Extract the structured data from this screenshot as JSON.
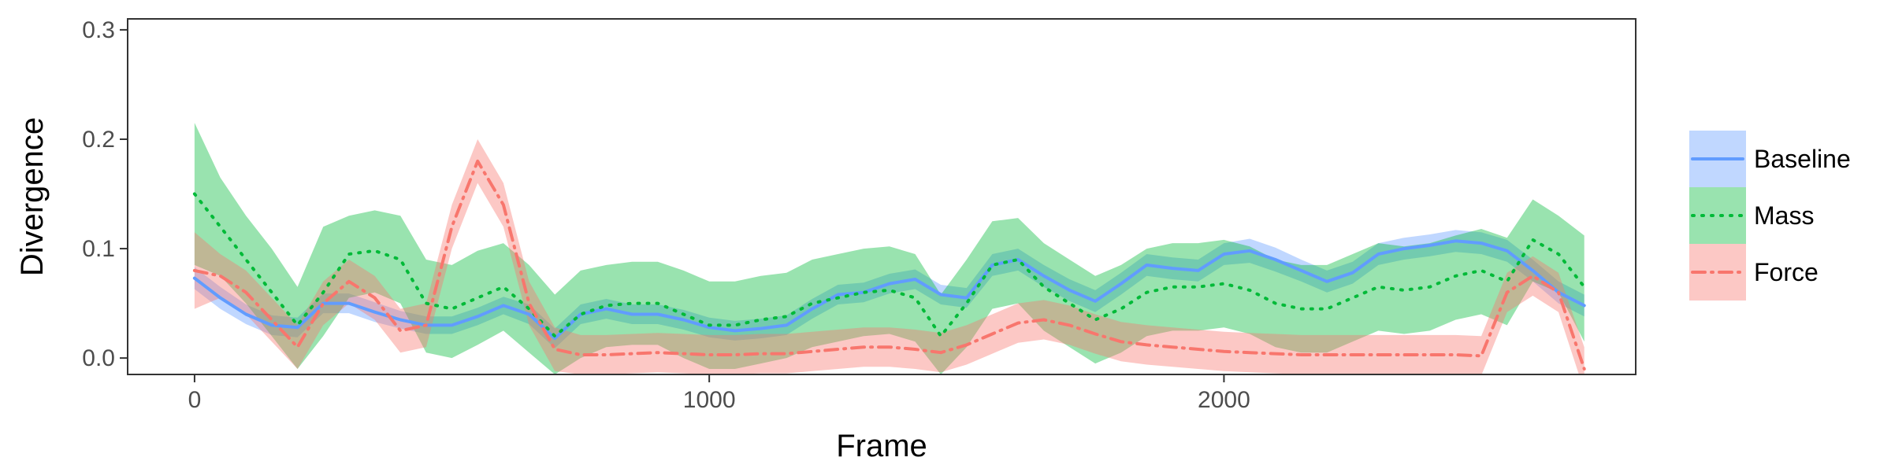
{
  "chart_data": {
    "type": "line",
    "title": "",
    "xlabel": "Frame",
    "ylabel": "Divergence",
    "xlim": [
      -130,
      2800
    ],
    "ylim": [
      -0.015,
      0.31
    ],
    "x_ticks": [
      0,
      1000,
      2000
    ],
    "x_tick_labels": [
      "0",
      "1000",
      "2000"
    ],
    "y_ticks": [
      0.0,
      0.1,
      0.2,
      0.3
    ],
    "y_tick_labels": [
      "0.0",
      "0.1",
      "0.2",
      "0.3"
    ],
    "grid": false,
    "legend_position": "right",
    "series": [
      {
        "name": "Baseline",
        "color": "#619CFF",
        "line_style": "solid",
        "x": [
          0,
          50,
          100,
          150,
          200,
          250,
          300,
          350,
          400,
          450,
          500,
          550,
          600,
          650,
          700,
          750,
          800,
          850,
          900,
          950,
          1000,
          1050,
          1100,
          1150,
          1200,
          1250,
          1300,
          1350,
          1400,
          1450,
          1500,
          1550,
          1600,
          1650,
          1700,
          1750,
          1800,
          1850,
          1900,
          1950,
          2000,
          2050,
          2100,
          2150,
          2200,
          2250,
          2300,
          2350,
          2400,
          2450,
          2500,
          2550,
          2600,
          2650,
          2700
        ],
        "y": [
          0.073,
          0.055,
          0.04,
          0.03,
          0.028,
          0.05,
          0.05,
          0.042,
          0.035,
          0.03,
          0.03,
          0.038,
          0.048,
          0.04,
          0.018,
          0.04,
          0.045,
          0.04,
          0.04,
          0.035,
          0.028,
          0.025,
          0.027,
          0.03,
          0.045,
          0.058,
          0.06,
          0.068,
          0.072,
          0.058,
          0.055,
          0.085,
          0.09,
          0.075,
          0.062,
          0.052,
          0.068,
          0.085,
          0.082,
          0.08,
          0.095,
          0.098,
          0.09,
          0.08,
          0.07,
          0.078,
          0.095,
          0.1,
          0.103,
          0.107,
          0.105,
          0.098,
          0.08,
          0.06,
          0.048
        ],
        "lower": [
          0.063,
          0.045,
          0.031,
          0.021,
          0.019,
          0.041,
          0.041,
          0.033,
          0.027,
          0.022,
          0.022,
          0.03,
          0.04,
          0.031,
          0.009,
          0.031,
          0.036,
          0.031,
          0.031,
          0.026,
          0.019,
          0.016,
          0.018,
          0.021,
          0.036,
          0.049,
          0.051,
          0.059,
          0.063,
          0.049,
          0.046,
          0.075,
          0.08,
          0.065,
          0.052,
          0.042,
          0.058,
          0.075,
          0.072,
          0.07,
          0.085,
          0.087,
          0.079,
          0.07,
          0.06,
          0.068,
          0.085,
          0.09,
          0.093,
          0.097,
          0.095,
          0.088,
          0.07,
          0.05,
          0.038
        ],
        "upper": [
          0.083,
          0.065,
          0.049,
          0.039,
          0.037,
          0.059,
          0.059,
          0.051,
          0.043,
          0.038,
          0.038,
          0.046,
          0.056,
          0.049,
          0.027,
          0.049,
          0.054,
          0.049,
          0.049,
          0.044,
          0.037,
          0.034,
          0.036,
          0.039,
          0.054,
          0.067,
          0.069,
          0.077,
          0.081,
          0.067,
          0.064,
          0.095,
          0.1,
          0.085,
          0.072,
          0.062,
          0.078,
          0.095,
          0.092,
          0.09,
          0.105,
          0.109,
          0.101,
          0.09,
          0.08,
          0.088,
          0.105,
          0.11,
          0.113,
          0.117,
          0.115,
          0.108,
          0.09,
          0.07,
          0.058
        ]
      },
      {
        "name": "Mass",
        "color": "#00BA38",
        "line_style": "dotted",
        "x": [
          0,
          50,
          100,
          150,
          200,
          250,
          300,
          350,
          400,
          450,
          500,
          550,
          600,
          650,
          700,
          750,
          800,
          850,
          900,
          950,
          1000,
          1050,
          1100,
          1150,
          1200,
          1250,
          1300,
          1350,
          1400,
          1450,
          1500,
          1550,
          1600,
          1650,
          1700,
          1750,
          1800,
          1850,
          1900,
          1950,
          2000,
          2050,
          2100,
          2150,
          2200,
          2250,
          2300,
          2350,
          2400,
          2450,
          2500,
          2550,
          2600,
          2650,
          2700
        ],
        "y": [
          0.15,
          0.12,
          0.09,
          0.06,
          0.03,
          0.06,
          0.095,
          0.098,
          0.09,
          0.05,
          0.045,
          0.055,
          0.065,
          0.045,
          0.02,
          0.04,
          0.048,
          0.05,
          0.05,
          0.04,
          0.03,
          0.03,
          0.035,
          0.038,
          0.05,
          0.055,
          0.06,
          0.062,
          0.055,
          0.02,
          0.05,
          0.085,
          0.09,
          0.065,
          0.05,
          0.035,
          0.045,
          0.06,
          0.065,
          0.065,
          0.068,
          0.062,
          0.05,
          0.045,
          0.045,
          0.055,
          0.065,
          0.062,
          0.065,
          0.075,
          0.08,
          0.07,
          0.108,
          0.095,
          0.065
        ],
        "lower": [
          0.085,
          0.075,
          0.05,
          0.02,
          -0.01,
          0.02,
          0.055,
          0.06,
          0.05,
          0.005,
          0.0,
          0.012,
          0.025,
          0.005,
          -0.015,
          0.0,
          0.01,
          0.012,
          0.012,
          0.0,
          -0.01,
          -0.01,
          -0.005,
          0.0,
          0.01,
          0.015,
          0.02,
          0.022,
          0.015,
          -0.015,
          0.01,
          0.045,
          0.05,
          0.025,
          0.01,
          -0.005,
          0.005,
          0.02,
          0.025,
          0.025,
          0.028,
          0.022,
          0.01,
          0.005,
          0.005,
          0.015,
          0.025,
          0.022,
          0.025,
          0.035,
          0.04,
          0.03,
          0.07,
          0.06,
          0.015
        ],
        "upper": [
          0.215,
          0.165,
          0.13,
          0.1,
          0.065,
          0.12,
          0.13,
          0.135,
          0.13,
          0.09,
          0.085,
          0.098,
          0.105,
          0.085,
          0.058,
          0.08,
          0.085,
          0.088,
          0.088,
          0.08,
          0.07,
          0.07,
          0.075,
          0.078,
          0.09,
          0.095,
          0.1,
          0.102,
          0.095,
          0.058,
          0.09,
          0.125,
          0.128,
          0.105,
          0.09,
          0.075,
          0.085,
          0.1,
          0.105,
          0.105,
          0.108,
          0.102,
          0.09,
          0.085,
          0.085,
          0.095,
          0.105,
          0.102,
          0.105,
          0.112,
          0.118,
          0.11,
          0.145,
          0.13,
          0.112
        ]
      },
      {
        "name": "Force",
        "color": "#F8766D",
        "line_style": "dashdot",
        "x": [
          0,
          50,
          100,
          150,
          200,
          250,
          300,
          350,
          400,
          450,
          500,
          550,
          600,
          650,
          700,
          750,
          800,
          850,
          900,
          950,
          1000,
          1050,
          1100,
          1150,
          1200,
          1250,
          1300,
          1350,
          1400,
          1450,
          1500,
          1550,
          1600,
          1650,
          1700,
          1750,
          1800,
          1850,
          1900,
          1950,
          2000,
          2050,
          2100,
          2150,
          2200,
          2250,
          2300,
          2350,
          2400,
          2450,
          2500,
          2550,
          2600,
          2650,
          2700
        ],
        "y": [
          0.08,
          0.075,
          0.06,
          0.035,
          0.01,
          0.05,
          0.07,
          0.055,
          0.025,
          0.03,
          0.12,
          0.18,
          0.14,
          0.05,
          0.008,
          0.003,
          0.003,
          0.004,
          0.005,
          0.004,
          0.003,
          0.003,
          0.004,
          0.004,
          0.006,
          0.008,
          0.01,
          0.01,
          0.008,
          0.005,
          0.012,
          0.022,
          0.032,
          0.035,
          0.03,
          0.022,
          0.015,
          0.012,
          0.01,
          0.008,
          0.006,
          0.005,
          0.004,
          0.003,
          0.003,
          0.003,
          0.003,
          0.003,
          0.003,
          0.003,
          0.002,
          0.06,
          0.075,
          0.06,
          -0.01
        ],
        "lower": [
          0.045,
          0.055,
          0.04,
          0.015,
          -0.01,
          0.03,
          0.05,
          0.035,
          0.005,
          0.01,
          0.1,
          0.16,
          0.12,
          0.03,
          -0.012,
          -0.015,
          -0.015,
          -0.014,
          -0.013,
          -0.014,
          -0.015,
          -0.015,
          -0.014,
          -0.014,
          -0.012,
          -0.01,
          -0.008,
          -0.008,
          -0.01,
          -0.013,
          -0.006,
          0.004,
          0.014,
          0.017,
          0.012,
          0.004,
          -0.003,
          -0.006,
          -0.008,
          -0.01,
          -0.012,
          -0.013,
          -0.014,
          -0.015,
          -0.015,
          -0.015,
          -0.015,
          -0.015,
          -0.015,
          -0.015,
          -0.016,
          0.042,
          0.057,
          0.042,
          -0.03
        ],
        "upper": [
          0.115,
          0.095,
          0.08,
          0.055,
          0.03,
          0.07,
          0.09,
          0.075,
          0.045,
          0.05,
          0.14,
          0.2,
          0.16,
          0.07,
          0.028,
          0.021,
          0.021,
          0.022,
          0.023,
          0.022,
          0.021,
          0.021,
          0.022,
          0.022,
          0.024,
          0.026,
          0.028,
          0.028,
          0.026,
          0.023,
          0.03,
          0.04,
          0.05,
          0.053,
          0.048,
          0.04,
          0.033,
          0.03,
          0.028,
          0.026,
          0.024,
          0.023,
          0.022,
          0.021,
          0.021,
          0.021,
          0.021,
          0.021,
          0.021,
          0.021,
          0.02,
          0.078,
          0.093,
          0.078,
          0.01
        ]
      }
    ]
  }
}
